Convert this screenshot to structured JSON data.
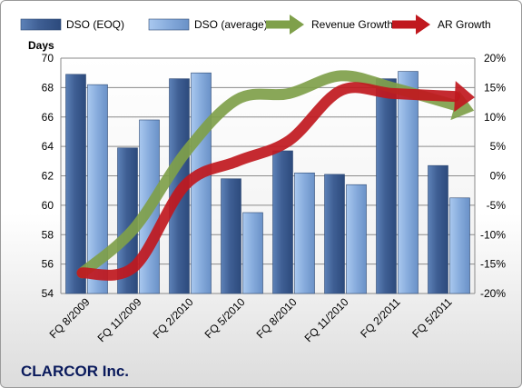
{
  "company": "CLARCOR Inc.",
  "chart_data": {
    "type": "bar",
    "categories": [
      "FQ 8/2009",
      "FQ 11/2009",
      "FQ 2/2010",
      "FQ 5/2010",
      "FQ 8/2010",
      "FQ 11/2010",
      "FQ 2/2011",
      "FQ 5/2011"
    ],
    "ylabel": "Days",
    "ylim": [
      54,
      70
    ],
    "yticks": [
      54,
      56,
      58,
      60,
      62,
      64,
      66,
      68,
      70
    ],
    "y2lim": [
      -20,
      20
    ],
    "y2ticks": [
      "-20%",
      "-15%",
      "-10%",
      "-5%",
      "0%",
      "5%",
      "10%",
      "15%",
      "20%"
    ],
    "grid": true,
    "legend": "top",
    "series": [
      {
        "name": "DSO (EOQ)",
        "kind": "bar",
        "axis": "left",
        "color": "#4a6fa5",
        "values": [
          68.9,
          63.9,
          68.6,
          61.8,
          63.7,
          62.1,
          68.6,
          62.7
        ]
      },
      {
        "name": "DSO (average)",
        "kind": "bar",
        "axis": "left",
        "color": "#8fb4e3",
        "values": [
          68.2,
          65.8,
          69.0,
          59.5,
          62.2,
          61.4,
          69.1,
          60.5
        ]
      },
      {
        "name": "Revenue Growth",
        "kind": "line",
        "axis": "right",
        "color": "#7fa04a",
        "unit": "%",
        "values": [
          -16.5,
          -9,
          4,
          13,
          14,
          17,
          15,
          12
        ]
      },
      {
        "name": "AR Growth",
        "kind": "line",
        "axis": "right",
        "color": "#c0181e",
        "unit": "%",
        "values": [
          -16.5,
          -15.5,
          -1.5,
          2.5,
          6,
          14.5,
          14,
          13.5
        ]
      }
    ]
  }
}
